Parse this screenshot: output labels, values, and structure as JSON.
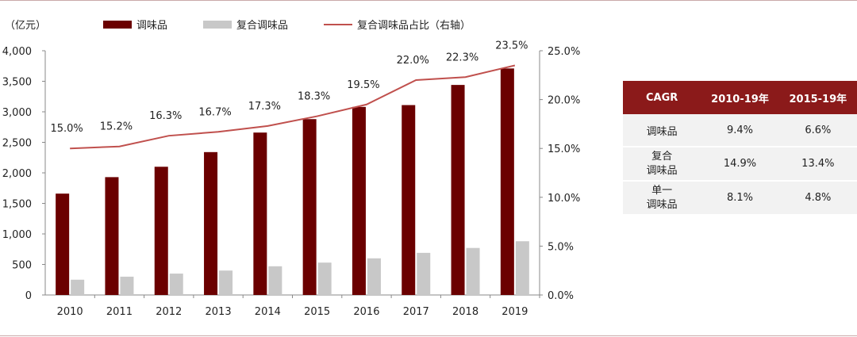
{
  "chart_data": {
    "type": "bar+line",
    "unit_label": "（亿元）",
    "categories": [
      "2010",
      "2011",
      "2012",
      "2013",
      "2014",
      "2015",
      "2016",
      "2017",
      "2018",
      "2019"
    ],
    "series": [
      {
        "name": "调味品",
        "type": "bar",
        "color": "#6b0000",
        "values": [
          1660,
          1930,
          2100,
          2340,
          2660,
          2880,
          3080,
          3110,
          3440,
          3710
        ]
      },
      {
        "name": "复合调味品",
        "type": "bar",
        "color": "#c8c8c8",
        "values": [
          250,
          300,
          350,
          400,
          470,
          530,
          600,
          690,
          770,
          880
        ]
      },
      {
        "name": "复合调味品占比（右轴）",
        "type": "line",
        "axis": "right",
        "color": "#c0504d",
        "values": [
          15.0,
          15.2,
          16.3,
          16.7,
          17.3,
          18.3,
          19.5,
          22.0,
          22.3,
          23.5
        ],
        "labels": [
          "15.0%",
          "15.2%",
          "16.3%",
          "16.7%",
          "17.3%",
          "18.3%",
          "19.5%",
          "22.0%",
          "22.3%",
          "23.5%"
        ]
      }
    ],
    "y_left": {
      "min": 0,
      "max": 4000,
      "ticks": [
        "0",
        "500",
        "1,000",
        "1,500",
        "2,000",
        "2,500",
        "3,000",
        "3,500",
        "4,000"
      ]
    },
    "y_right": {
      "min": 0,
      "max": 25,
      "ticks": [
        "0.0%",
        "5.0%",
        "10.0%",
        "15.0%",
        "20.0%",
        "25.0%"
      ]
    },
    "grid": false,
    "legend_position": "top"
  },
  "table": {
    "headers": [
      "CAGR",
      "2010-19年",
      "2015-19年"
    ],
    "rows": [
      {
        "name": [
          "调味品"
        ],
        "values": [
          "9.4%",
          "6.6%"
        ]
      },
      {
        "name": [
          "复合",
          "调味品"
        ],
        "values": [
          "14.9%",
          "13.4%"
        ]
      },
      {
        "name": [
          "单一",
          "调味品"
        ],
        "values": [
          "8.1%",
          "4.8%"
        ]
      }
    ]
  }
}
